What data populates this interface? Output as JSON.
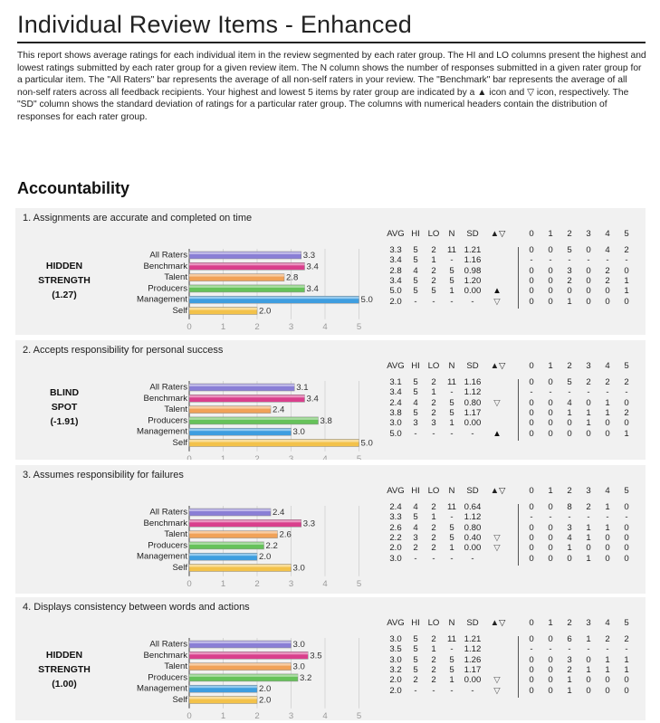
{
  "report": {
    "title": "Individual Review Items - Enhanced",
    "intro": "This report shows average ratings for each individual item in the review segmented by each rater group. The HI and LO columns present the highest and lowest ratings submitted by each rater group for a given review item. The N column shows the number of responses submitted in a given rater group for a particular item. The \"All Raters\" bar represents the average of all non-self raters in your review. The \"Benchmark\" bar represents the average of all non-self raters across all feedback recipients. Your highest and lowest 5 items by rater group are indicated by a ▲ icon and ▽ icon, respectively. The \"SD\" column shows the standard deviation of ratings for a particular rater group. The columns with numerical headers contain the distribution of responses for each rater group.",
    "section": "Accountability"
  },
  "columns": [
    "AVG",
    "HI",
    "LO",
    "N",
    "SD",
    "▲▽",
    "0",
    "1",
    "2",
    "3",
    "4",
    "5"
  ],
  "colors": {
    "All Raters": "#8a7fd6",
    "Benchmark": "#d93f8c",
    "Talent": "#f1a258",
    "Producers": "#66c25a",
    "Management": "#3e9ee0",
    "Self": "#f3c24a",
    "block_bg": "#f1f1f1"
  },
  "chart_data": [
    {
      "type": "bar",
      "title": "1. Assignments are accurate and completed on time",
      "category": [
        "HIDDEN",
        "STRENGTH",
        "(1.27)"
      ],
      "categories": [
        "All Raters",
        "Benchmark",
        "Talent",
        "Producers",
        "Management",
        "Self"
      ],
      "values": [
        3.3,
        3.4,
        2.8,
        3.4,
        5.0,
        2.0
      ],
      "value_labels": [
        "3.3",
        "3.4",
        "2.8",
        "3.4",
        "5.0",
        "2.0"
      ],
      "xlim": [
        0,
        5
      ],
      "ticks": [
        "0",
        "1",
        "2",
        "3",
        "4",
        "5"
      ],
      "rows": [
        [
          "3.3",
          "5",
          "2",
          "11",
          "1.21",
          "",
          "0",
          "0",
          "5",
          "0",
          "4",
          "2"
        ],
        [
          "3.4",
          "5",
          "1",
          "-",
          "1.16",
          "",
          "-",
          "-",
          "-",
          "-",
          "-",
          "-"
        ],
        [
          "2.8",
          "4",
          "2",
          "5",
          "0.98",
          "",
          "0",
          "0",
          "3",
          "0",
          "2",
          "0"
        ],
        [
          "3.4",
          "5",
          "2",
          "5",
          "1.20",
          "",
          "0",
          "0",
          "2",
          "0",
          "2",
          "1"
        ],
        [
          "5.0",
          "5",
          "5",
          "1",
          "0.00",
          "▲",
          "0",
          "0",
          "0",
          "0",
          "0",
          "1"
        ],
        [
          "2.0",
          "-",
          "-",
          "-",
          "-",
          "▽",
          "0",
          "0",
          "1",
          "0",
          "0",
          "0"
        ]
      ]
    },
    {
      "type": "bar",
      "title": "2. Accepts responsibility for personal success",
      "category": [
        "BLIND",
        "SPOT",
        "(-1.91)"
      ],
      "categories": [
        "All Raters",
        "Benchmark",
        "Talent",
        "Producers",
        "Management",
        "Self"
      ],
      "values": [
        3.1,
        3.4,
        2.4,
        3.8,
        3.0,
        5.0
      ],
      "value_labels": [
        "3.1",
        "3.4",
        "2.4",
        "3.8",
        "3.0",
        "5.0"
      ],
      "xlim": [
        0,
        5
      ],
      "ticks": [
        "0",
        "1",
        "2",
        "3",
        "4",
        "5"
      ],
      "rows": [
        [
          "3.1",
          "5",
          "2",
          "11",
          "1.16",
          "",
          "0",
          "0",
          "5",
          "2",
          "2",
          "2"
        ],
        [
          "3.4",
          "5",
          "1",
          "-",
          "1.12",
          "",
          "-",
          "-",
          "-",
          "-",
          "-",
          "-"
        ],
        [
          "2.4",
          "4",
          "2",
          "5",
          "0.80",
          "▽",
          "0",
          "0",
          "4",
          "0",
          "1",
          "0"
        ],
        [
          "3.8",
          "5",
          "2",
          "5",
          "1.17",
          "",
          "0",
          "0",
          "1",
          "1",
          "1",
          "2"
        ],
        [
          "3.0",
          "3",
          "3",
          "1",
          "0.00",
          "",
          "0",
          "0",
          "0",
          "1",
          "0",
          "0"
        ],
        [
          "5.0",
          "-",
          "-",
          "-",
          "-",
          "▲",
          "0",
          "0",
          "0",
          "0",
          "0",
          "1"
        ]
      ]
    },
    {
      "type": "bar",
      "title": "3. Assumes responsibility for failures",
      "category": [],
      "categories": [
        "All Raters",
        "Benchmark",
        "Talent",
        "Producers",
        "Management",
        "Self"
      ],
      "values": [
        2.4,
        3.3,
        2.6,
        2.2,
        2.0,
        3.0
      ],
      "value_labels": [
        "2.4",
        "3.3",
        "2.6",
        "2.2",
        "2.0",
        "3.0"
      ],
      "xlim": [
        0,
        5
      ],
      "ticks": [
        "0",
        "1",
        "2",
        "3",
        "4",
        "5"
      ],
      "rows": [
        [
          "2.4",
          "4",
          "2",
          "11",
          "0.64",
          "",
          "0",
          "0",
          "8",
          "2",
          "1",
          "0"
        ],
        [
          "3.3",
          "5",
          "1",
          "-",
          "1.12",
          "",
          "-",
          "-",
          "-",
          "-",
          "-",
          "-"
        ],
        [
          "2.6",
          "4",
          "2",
          "5",
          "0.80",
          "",
          "0",
          "0",
          "3",
          "1",
          "1",
          "0"
        ],
        [
          "2.2",
          "3",
          "2",
          "5",
          "0.40",
          "▽",
          "0",
          "0",
          "4",
          "1",
          "0",
          "0"
        ],
        [
          "2.0",
          "2",
          "2",
          "1",
          "0.00",
          "▽",
          "0",
          "0",
          "1",
          "0",
          "0",
          "0"
        ],
        [
          "3.0",
          "-",
          "-",
          "-",
          "-",
          "",
          "0",
          "0",
          "0",
          "1",
          "0",
          "0"
        ]
      ]
    },
    {
      "type": "bar",
      "title": "4. Displays consistency between words and actions",
      "category": [
        "HIDDEN",
        "STRENGTH",
        "(1.00)"
      ],
      "categories": [
        "All Raters",
        "Benchmark",
        "Talent",
        "Producers",
        "Management",
        "Self"
      ],
      "values": [
        3.0,
        3.5,
        3.0,
        3.2,
        2.0,
        2.0
      ],
      "value_labels": [
        "3.0",
        "3.5",
        "3.0",
        "3.2",
        "2.0",
        "2.0"
      ],
      "xlim": [
        0,
        5
      ],
      "ticks": [
        "0",
        "1",
        "2",
        "3",
        "4",
        "5"
      ],
      "rows": [
        [
          "3.0",
          "5",
          "2",
          "11",
          "1.21",
          "",
          "0",
          "0",
          "6",
          "1",
          "2",
          "2"
        ],
        [
          "3.5",
          "5",
          "1",
          "-",
          "1.12",
          "",
          "-",
          "-",
          "-",
          "-",
          "-",
          "-"
        ],
        [
          "3.0",
          "5",
          "2",
          "5",
          "1.26",
          "",
          "0",
          "0",
          "3",
          "0",
          "1",
          "1"
        ],
        [
          "3.2",
          "5",
          "2",
          "5",
          "1.17",
          "",
          "0",
          "0",
          "2",
          "1",
          "1",
          "1"
        ],
        [
          "2.0",
          "2",
          "2",
          "1",
          "0.00",
          "▽",
          "0",
          "0",
          "1",
          "0",
          "0",
          "0"
        ],
        [
          "2.0",
          "-",
          "-",
          "-",
          "-",
          "▽",
          "0",
          "0",
          "1",
          "0",
          "0",
          "0"
        ]
      ]
    }
  ]
}
